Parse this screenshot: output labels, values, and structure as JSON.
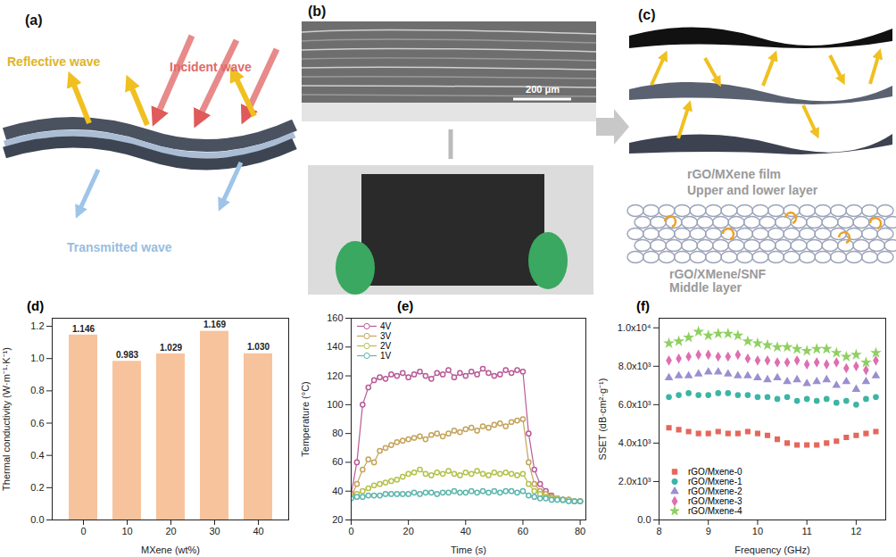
{
  "diagrams": {
    "a": {
      "label": "(a)",
      "reflective": "Reflective wave",
      "incident": "Incident wave",
      "transmitted": "Transmitted wave"
    },
    "b": {
      "label": "(b)",
      "scale_bar": "200 μm"
    },
    "c": {
      "label": "(c)",
      "layer1_title": "rGO/MXene film",
      "layer1_subtitle": "Upper and lower layer",
      "layer2_title": "rGO/XMene/SNF",
      "layer2_subtitle": "Middle layer"
    }
  },
  "chart_data": [
    {
      "type": "bar",
      "title": "(d)",
      "x_label": "MXene (wt%)",
      "y_label": "Thermal conductivity (W·m⁻¹·K⁻¹)",
      "categories": [
        "0",
        "10",
        "20",
        "30",
        "40"
      ],
      "values": [
        1.146,
        0.983,
        1.029,
        1.169,
        1.03
      ],
      "value_labels": [
        "1.146",
        "0.983",
        "1.029",
        "1.169",
        "1.030"
      ],
      "data_labels": true,
      "color": "#f7c39c",
      "ylim": [
        0,
        1.25
      ],
      "yticks": [
        {
          "value": 0,
          "label": "0.0"
        },
        0.2,
        0.4,
        0.6,
        0.8,
        {
          "value": 1,
          "label": "1.0"
        },
        1.2
      ]
    },
    {
      "type": "line",
      "title": "(e)",
      "x_label": "Time (s)",
      "y_label": "Temperature (°C)",
      "x": [
        0,
        2,
        4,
        6,
        8,
        10,
        12,
        14,
        16,
        18,
        20,
        22,
        24,
        26,
        28,
        30,
        32,
        34,
        36,
        38,
        40,
        42,
        44,
        46,
        48,
        50,
        52,
        54,
        56,
        58,
        60,
        62,
        64,
        66,
        68,
        70,
        72,
        74,
        76,
        78,
        80
      ],
      "series": [
        {
          "name": "4V",
          "color": "#b85c98",
          "marker": "circle",
          "line_style": "solid",
          "values": [
            38,
            60,
            100,
            112,
            117,
            119,
            118,
            121,
            120,
            122,
            119,
            121,
            123,
            120,
            118,
            122,
            121,
            124,
            119,
            122,
            120,
            123,
            121,
            125,
            122,
            120,
            121,
            124,
            122,
            124,
            123,
            80,
            55,
            45,
            40,
            37,
            35,
            34,
            34,
            33,
            33
          ]
        },
        {
          "name": "3V",
          "color": "#c4a45c",
          "marker": "circle",
          "line_style": "solid",
          "values": [
            36,
            45,
            55,
            62,
            60,
            68,
            70,
            72,
            74,
            75,
            76,
            77,
            78,
            76,
            79,
            80,
            78,
            80,
            82,
            81,
            83,
            84,
            82,
            85,
            84,
            86,
            87,
            85,
            88,
            89,
            90,
            60,
            45,
            40,
            38,
            36,
            35,
            34,
            34,
            33,
            33
          ]
        },
        {
          "name": "2V",
          "color": "#b4c24c",
          "marker": "circle",
          "line_style": "solid",
          "values": [
            36,
            38,
            40,
            42,
            44,
            45,
            46,
            47,
            48,
            50,
            52,
            53,
            55,
            52,
            51,
            53,
            52,
            54,
            52,
            51,
            53,
            52,
            54,
            52,
            51,
            53,
            52,
            53,
            52,
            51,
            52,
            45,
            40,
            38,
            36,
            35,
            35,
            34,
            34,
            33,
            33
          ]
        },
        {
          "name": "1V",
          "color": "#5fb6ae",
          "marker": "circle",
          "line_style": "solid",
          "values": [
            35,
            36,
            36,
            37,
            37,
            37,
            38,
            38,
            38,
            38,
            38,
            39,
            38,
            39,
            39,
            38,
            39,
            39,
            40,
            39,
            39,
            40,
            39,
            40,
            39,
            40,
            39,
            40,
            40,
            39,
            40,
            37,
            36,
            35,
            35,
            34,
            34,
            34,
            33,
            33,
            33
          ]
        }
      ],
      "legend": "top-left",
      "xlim": [
        0,
        82
      ],
      "xticks": [
        0,
        20,
        40,
        60,
        80
      ],
      "ylim": [
        20,
        160
      ],
      "yticks": [
        20,
        40,
        60,
        80,
        100,
        120,
        140,
        160
      ]
    },
    {
      "type": "scatter",
      "title": "(f)",
      "x_label": "Frequency (GHz)",
      "y_label": "SSET (dB·cm²·g⁻¹)",
      "x": [
        8.2,
        8.4,
        8.6,
        8.8,
        9,
        9.2,
        9.4,
        9.6,
        9.8,
        10,
        10.2,
        10.4,
        10.6,
        10.8,
        11,
        11.2,
        11.4,
        11.6,
        11.8,
        12,
        12.2,
        12.4
      ],
      "series": [
        {
          "name": "rGO/Mxene-0",
          "color": "#e4675b",
          "marker": "square",
          "values": [
            4800,
            4700,
            4600,
            4500,
            4500,
            4600,
            4500,
            4500,
            4600,
            4500,
            4400,
            4200,
            4000,
            3900,
            3900,
            3900,
            4000,
            4100,
            4300,
            4400,
            4500,
            4600
          ]
        },
        {
          "name": "rGO/Mxene-1",
          "color": "#3db5a5",
          "marker": "circle",
          "values": [
            6400,
            6500,
            6600,
            6500,
            6500,
            6600,
            6600,
            6500,
            6500,
            6400,
            6400,
            6300,
            6400,
            6200,
            6300,
            6200,
            6300,
            6100,
            6200,
            6000,
            6300,
            6400
          ]
        },
        {
          "name": "rGO/Mxene-2",
          "color": "#9a8fd0",
          "marker": "triangle",
          "values": [
            7400,
            7500,
            7500,
            7600,
            7700,
            7700,
            7600,
            7500,
            7500,
            7400,
            7300,
            7400,
            7200,
            7300,
            7100,
            7200,
            7300,
            7000,
            7200,
            6800,
            7200,
            7500
          ]
        },
        {
          "name": "rGO/Mxene-3",
          "color": "#de6fb0",
          "marker": "diamond",
          "values": [
            8300,
            8400,
            8500,
            8600,
            8600,
            8500,
            8500,
            8600,
            8400,
            8300,
            8300,
            8200,
            8200,
            8300,
            8100,
            8200,
            8100,
            8200,
            7900,
            8000,
            7800,
            8300
          ]
        },
        {
          "name": "rGO/Mxene-4",
          "color": "#8fd062",
          "marker": "star",
          "values": [
            9200,
            9300,
            9500,
            9800,
            9600,
            9700,
            9700,
            9600,
            9300,
            9200,
            9100,
            9000,
            9000,
            8900,
            8800,
            8900,
            8900,
            8700,
            8500,
            8600,
            8200,
            8700
          ]
        }
      ],
      "legend": "bottom-left",
      "xlim": [
        8,
        12.6
      ],
      "xticks": [
        8,
        9,
        10,
        11,
        12
      ],
      "ylim": [
        0,
        10500
      ],
      "yticks": [
        {
          "value": 0,
          "label": "0.0"
        },
        {
          "value": 2000,
          "label": "2.0x10³"
        },
        {
          "value": 4000,
          "label": "4.0x10³"
        },
        {
          "value": 6000,
          "label": "6.0x10³"
        },
        {
          "value": 8000,
          "label": "8.0x10³"
        },
        {
          "value": 10000,
          "label": "1.0x10⁴"
        }
      ]
    }
  ]
}
